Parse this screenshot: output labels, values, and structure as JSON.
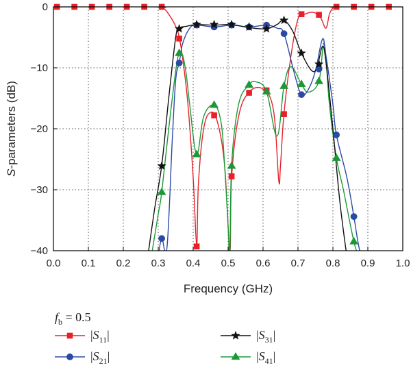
{
  "chart_data": {
    "type": "line",
    "xlabel": "Frequency (GHz)",
    "ylabel_prefix": "S",
    "ylabel_rest": "-parameters (dB)",
    "xlim": [
      0.0,
      1.0
    ],
    "ylim": [
      -40,
      0
    ],
    "x_ticks": [
      0.0,
      0.1,
      0.2,
      0.3,
      0.4,
      0.5,
      0.6,
      0.7,
      0.8,
      0.9,
      1.0
    ],
    "x_tick_labels": [
      "0.0",
      "0.1",
      "0.2",
      "0.3",
      "0.4",
      "0.5",
      "0.6",
      "0.7",
      "0.8",
      "0.9",
      "1.0"
    ],
    "y_ticks": [
      0,
      -10,
      -20,
      -30,
      -40
    ],
    "y_tick_labels": [
      "0",
      "−10",
      "−20",
      "−30",
      "−40"
    ],
    "grid": "dotted",
    "legend_header": {
      "symbol": "f",
      "subscript": "b",
      "value": " = 0.5"
    },
    "series": [
      {
        "name": "|S11|",
        "legend_base": "S",
        "legend_sub": "11",
        "color": "#e8202a",
        "marker": "square",
        "curve": [
          [
            0.0,
            0
          ],
          [
            0.29,
            0
          ],
          [
            0.315,
            -0.3
          ],
          [
            0.33,
            -1.2
          ],
          [
            0.35,
            -3.2
          ],
          [
            0.36,
            -5
          ],
          [
            0.37,
            -8.5
          ],
          [
            0.385,
            -16
          ],
          [
            0.4,
            -28
          ],
          [
            0.41,
            -39
          ],
          [
            0.415,
            -29
          ],
          [
            0.43,
            -20
          ],
          [
            0.45,
            -17.3
          ],
          [
            0.47,
            -19
          ],
          [
            0.49,
            -26
          ],
          [
            0.505,
            -40
          ],
          [
            0.51,
            -28
          ],
          [
            0.53,
            -18
          ],
          [
            0.56,
            -14
          ],
          [
            0.6,
            -13.5
          ],
          [
            0.63,
            -17
          ],
          [
            0.645,
            -28.5
          ],
          [
            0.65,
            -26
          ],
          [
            0.66,
            -17.5
          ],
          [
            0.68,
            -8
          ],
          [
            0.7,
            -2
          ],
          [
            0.72,
            -1.2
          ],
          [
            0.745,
            -0.9
          ],
          [
            0.765,
            -1.8
          ],
          [
            0.78,
            -3.5
          ],
          [
            0.79,
            -1.2
          ],
          [
            0.8,
            -0.2
          ],
          [
            0.81,
            0
          ],
          [
            1.0,
            0
          ]
        ],
        "markers": [
          [
            0.01,
            0
          ],
          [
            0.06,
            0
          ],
          [
            0.11,
            0
          ],
          [
            0.16,
            0
          ],
          [
            0.21,
            0
          ],
          [
            0.26,
            0
          ],
          [
            0.31,
            0
          ],
          [
            0.36,
            -5.2
          ],
          [
            0.41,
            -39.3
          ],
          [
            0.46,
            -17.8
          ],
          [
            0.51,
            -27.8
          ],
          [
            0.56,
            -14.1
          ],
          [
            0.61,
            -13.7
          ],
          [
            0.66,
            -17.6
          ],
          [
            0.71,
            -1.2
          ],
          [
            0.76,
            -1.3
          ],
          [
            0.81,
            0
          ],
          [
            0.86,
            0
          ],
          [
            0.91,
            0
          ],
          [
            0.96,
            0
          ]
        ]
      },
      {
        "name": "|S21|",
        "legend_base": "S",
        "legend_sub": "21",
        "color": "#2b4aa6",
        "marker": "circle",
        "curve": [
          [
            0.3,
            -41
          ],
          [
            0.31,
            -38
          ],
          [
            0.325,
            -39.5
          ],
          [
            0.34,
            -22
          ],
          [
            0.35,
            -12
          ],
          [
            0.36,
            -9.2
          ],
          [
            0.37,
            -6
          ],
          [
            0.39,
            -3.5
          ],
          [
            0.41,
            -3
          ],
          [
            0.46,
            -3.3
          ],
          [
            0.51,
            -3
          ],
          [
            0.56,
            -3.3
          ],
          [
            0.61,
            -3
          ],
          [
            0.64,
            -3.5
          ],
          [
            0.66,
            -4.4
          ],
          [
            0.69,
            -11
          ],
          [
            0.71,
            -14.4
          ],
          [
            0.73,
            -13.5
          ],
          [
            0.75,
            -10.5
          ],
          [
            0.77,
            -5.3
          ],
          [
            0.78,
            -8
          ],
          [
            0.8,
            -16
          ],
          [
            0.81,
            -21
          ],
          [
            0.84,
            -28
          ],
          [
            0.86,
            -34.4
          ],
          [
            0.87,
            -38
          ],
          [
            0.88,
            -41
          ]
        ],
        "markers": [
          [
            0.31,
            -38
          ],
          [
            0.36,
            -9.2
          ],
          [
            0.41,
            -3
          ],
          [
            0.46,
            -3.3
          ],
          [
            0.51,
            -3
          ],
          [
            0.56,
            -3.3
          ],
          [
            0.61,
            -3
          ],
          [
            0.66,
            -4.4
          ],
          [
            0.71,
            -14.4
          ],
          [
            0.76,
            -10.2
          ],
          [
            0.81,
            -21
          ],
          [
            0.86,
            -34.4
          ]
        ]
      },
      {
        "name": "|S31|",
        "legend_base": "S",
        "legend_sub": "31",
        "color": "#111111",
        "marker": "star",
        "curve": [
          [
            0.27,
            -41
          ],
          [
            0.29,
            -33
          ],
          [
            0.31,
            -26
          ],
          [
            0.33,
            -15
          ],
          [
            0.35,
            -5
          ],
          [
            0.36,
            -3.5
          ],
          [
            0.38,
            -3.2
          ],
          [
            0.41,
            -2.9
          ],
          [
            0.46,
            -3
          ],
          [
            0.51,
            -2.9
          ],
          [
            0.56,
            -3.4
          ],
          [
            0.61,
            -3.6
          ],
          [
            0.64,
            -2.9
          ],
          [
            0.66,
            -2.2
          ],
          [
            0.685,
            -4
          ],
          [
            0.71,
            -7.6
          ],
          [
            0.74,
            -10.5
          ],
          [
            0.755,
            -9.8
          ],
          [
            0.77,
            -6.5
          ],
          [
            0.78,
            -9
          ],
          [
            0.8,
            -20
          ],
          [
            0.82,
            -32
          ],
          [
            0.84,
            -41
          ]
        ],
        "markers": [
          [
            0.31,
            -26.1
          ],
          [
            0.36,
            -3.6
          ],
          [
            0.41,
            -2.9
          ],
          [
            0.46,
            -2.9
          ],
          [
            0.51,
            -2.9
          ],
          [
            0.56,
            -3.3
          ],
          [
            0.61,
            -3.6
          ],
          [
            0.66,
            -2.2
          ],
          [
            0.71,
            -7.6
          ],
          [
            0.76,
            -9.4
          ]
        ]
      },
      {
        "name": "|S41|",
        "legend_base": "S",
        "legend_sub": "41",
        "color": "#1a9a36",
        "marker": "triangle",
        "curve": [
          [
            0.28,
            -41
          ],
          [
            0.3,
            -34
          ],
          [
            0.31,
            -30.4
          ],
          [
            0.33,
            -20
          ],
          [
            0.35,
            -10.5
          ],
          [
            0.36,
            -7.6
          ],
          [
            0.37,
            -8
          ],
          [
            0.38,
            -11
          ],
          [
            0.39,
            -16
          ],
          [
            0.41,
            -24.2
          ],
          [
            0.43,
            -18
          ],
          [
            0.46,
            -16.1
          ],
          [
            0.48,
            -19
          ],
          [
            0.49,
            -26
          ],
          [
            0.5,
            -36
          ],
          [
            0.505,
            -41
          ],
          [
            0.51,
            -26
          ],
          [
            0.53,
            -16
          ],
          [
            0.56,
            -12.8
          ],
          [
            0.58,
            -12.3
          ],
          [
            0.61,
            -13.9
          ],
          [
            0.64,
            -21.2
          ],
          [
            0.66,
            -13
          ],
          [
            0.68,
            -9.8
          ],
          [
            0.71,
            -12.7
          ],
          [
            0.73,
            -14
          ],
          [
            0.76,
            -12.2
          ],
          [
            0.775,
            -6
          ],
          [
            0.79,
            -16
          ],
          [
            0.81,
            -24.8
          ],
          [
            0.83,
            -30
          ],
          [
            0.86,
            -38.5
          ],
          [
            0.875,
            -41
          ]
        ],
        "markers": [
          [
            0.31,
            -30.4
          ],
          [
            0.36,
            -7.6
          ],
          [
            0.41,
            -24.2
          ],
          [
            0.46,
            -16.1
          ],
          [
            0.51,
            -26.1
          ],
          [
            0.56,
            -12.8
          ],
          [
            0.61,
            -13.9
          ],
          [
            0.66,
            -13
          ],
          [
            0.71,
            -12.7
          ],
          [
            0.76,
            -12.2
          ],
          [
            0.81,
            -24.8
          ],
          [
            0.86,
            -38.5
          ]
        ]
      }
    ]
  }
}
